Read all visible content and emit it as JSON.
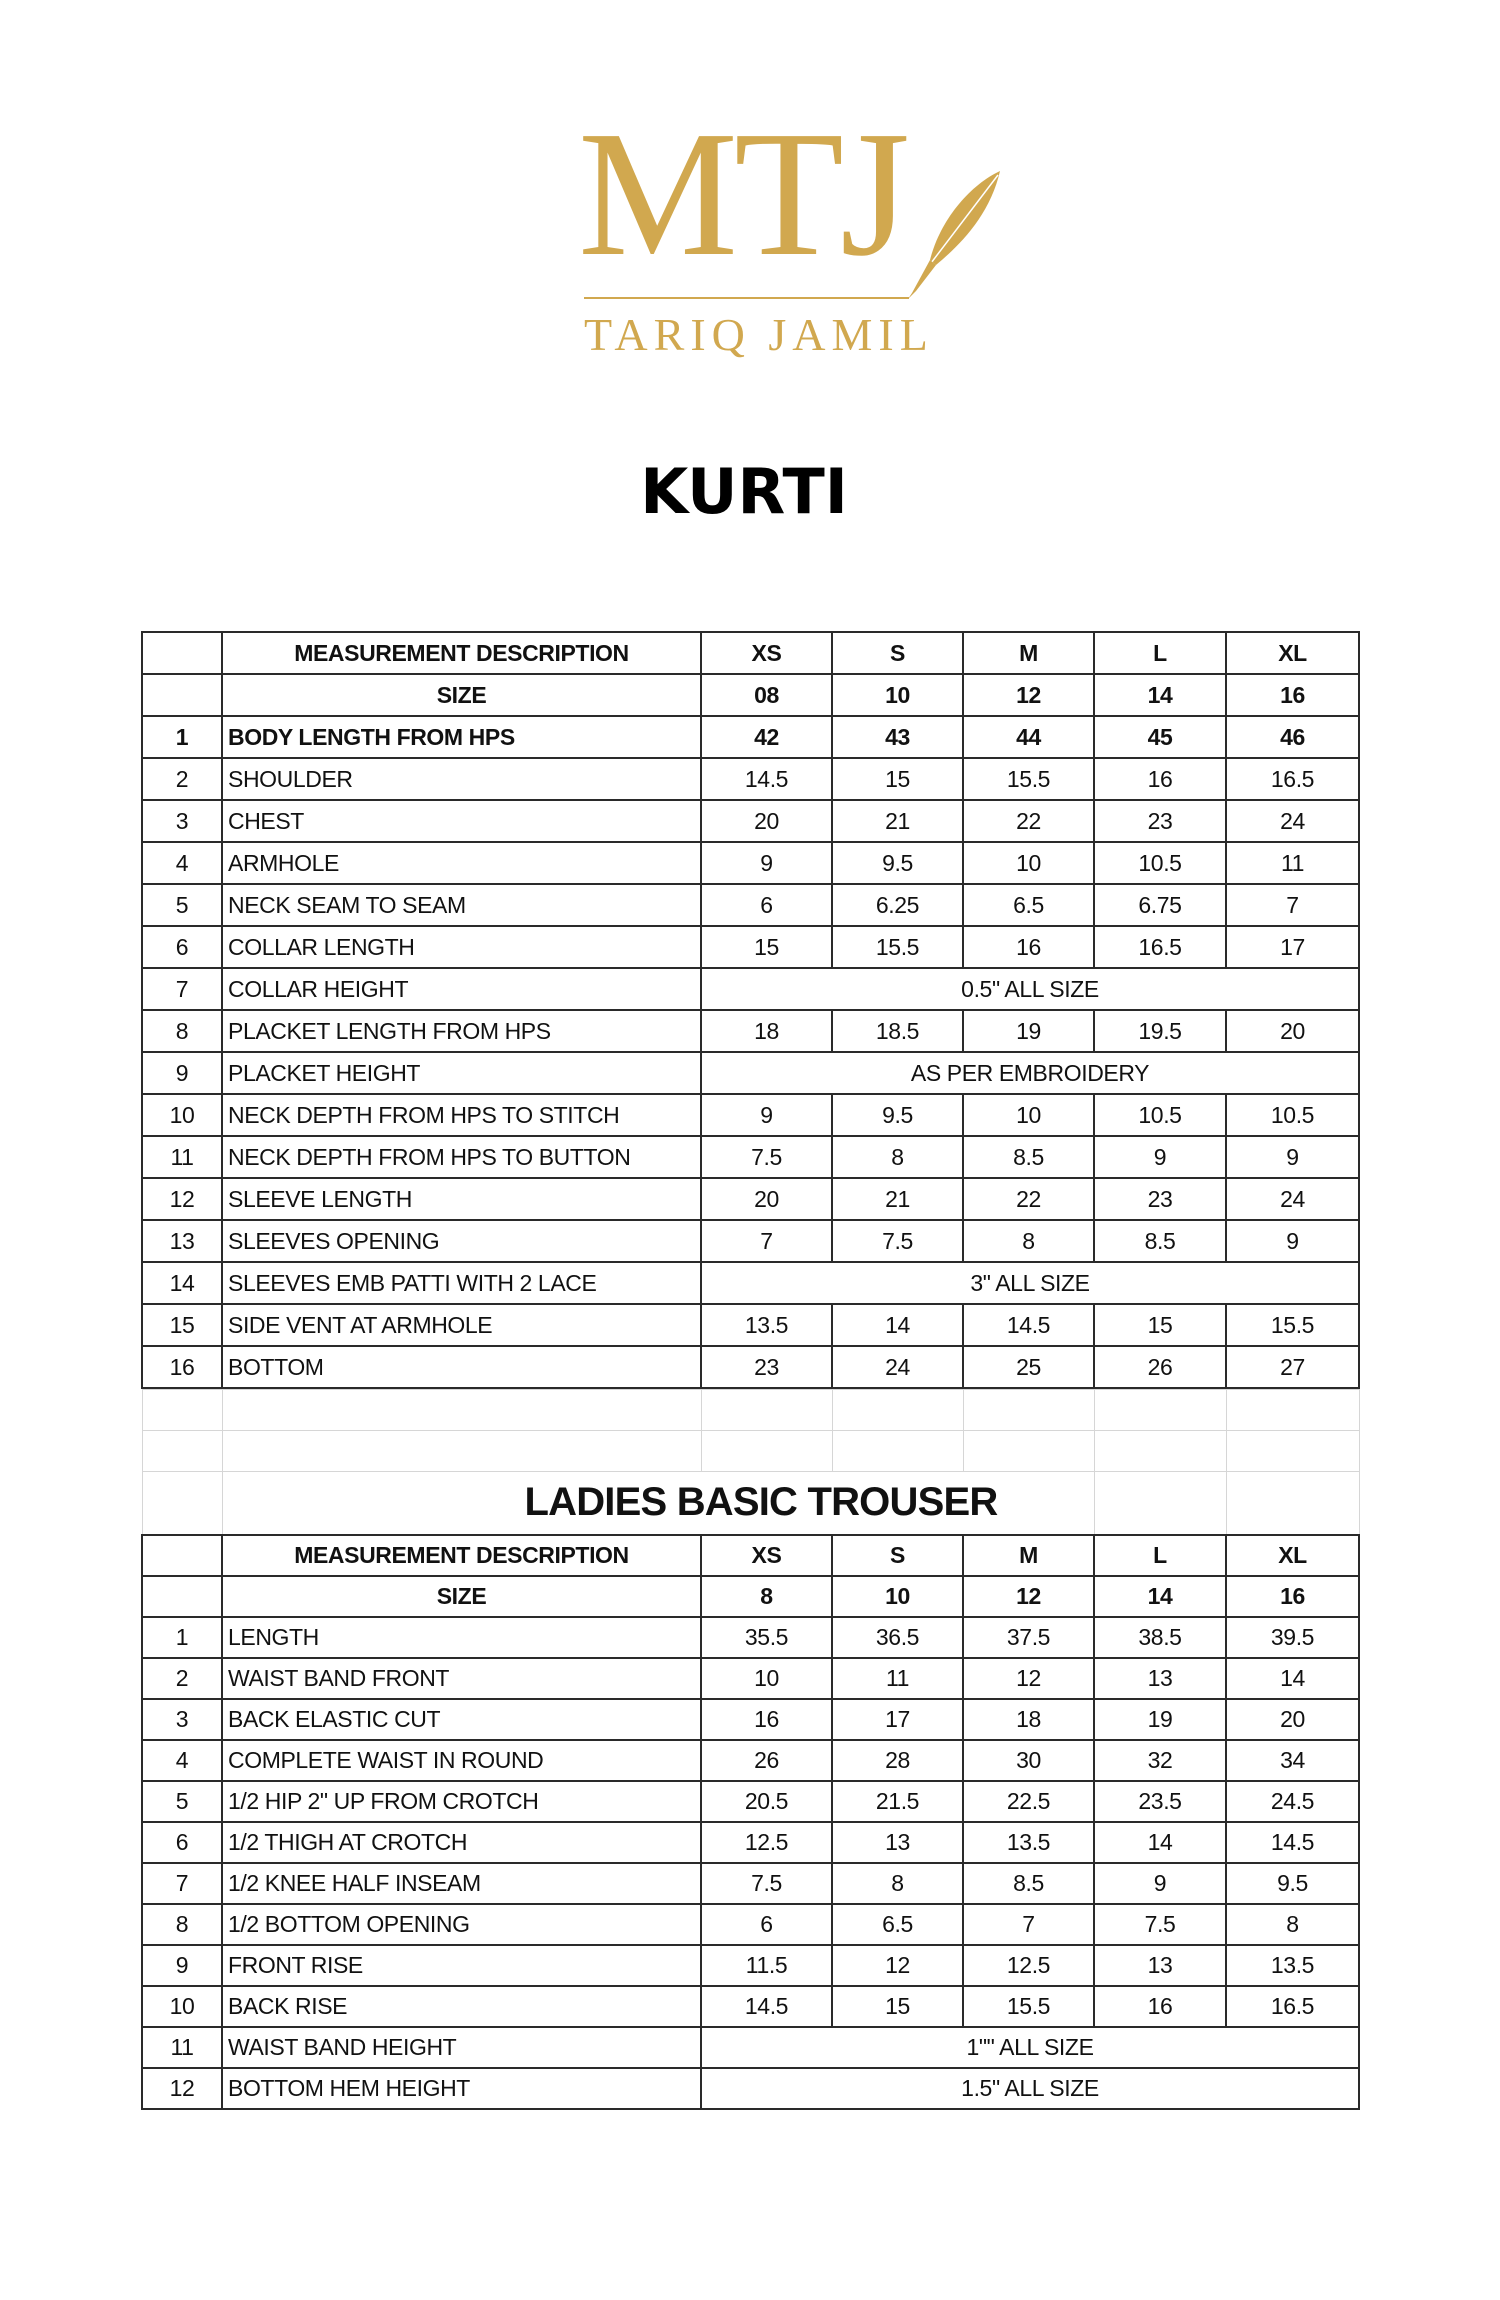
{
  "brand": {
    "logo_text": "MTJ",
    "logo_subtext": "TARIQ JAMIL",
    "color": "#d1a84f"
  },
  "kurti": {
    "title": "KURTI",
    "header": {
      "desc": "MEASUREMENT DESCRIPTION",
      "sizes": [
        "XS",
        "S",
        "M",
        "L",
        "XL"
      ]
    },
    "size_row": {
      "label": "SIZE",
      "values": [
        "08",
        "10",
        "12",
        "14",
        "16"
      ]
    },
    "rows": [
      {
        "no": "1",
        "desc": "BODY LENGTH FROM HPS",
        "values": [
          "42",
          "43",
          "44",
          "45",
          "46"
        ],
        "bold": true
      },
      {
        "no": "2",
        "desc": "SHOULDER",
        "values": [
          "14.5",
          "15",
          "15.5",
          "16",
          "16.5"
        ]
      },
      {
        "no": "3",
        "desc": "CHEST",
        "values": [
          "20",
          "21",
          "22",
          "23",
          "24"
        ]
      },
      {
        "no": "4",
        "desc": "ARMHOLE",
        "values": [
          "9",
          "9.5",
          "10",
          "10.5",
          "11"
        ]
      },
      {
        "no": "5",
        "desc": "NECK SEAM TO SEAM",
        "values": [
          "6",
          "6.25",
          "6.5",
          "6.75",
          "7"
        ]
      },
      {
        "no": "6",
        "desc": "COLLAR LENGTH",
        "values": [
          "15",
          "15.5",
          "16",
          "16.5",
          "17"
        ]
      },
      {
        "no": "7",
        "desc": "COLLAR HEIGHT",
        "all": "0.5\" ALL SIZE"
      },
      {
        "no": "8",
        "desc": "PLACKET LENGTH FROM HPS",
        "values": [
          "18",
          "18.5",
          "19",
          "19.5",
          "20"
        ]
      },
      {
        "no": "9",
        "desc": "PLACKET HEIGHT",
        "all": "AS PER EMBROIDERY"
      },
      {
        "no": "10",
        "desc": "NECK DEPTH FROM HPS TO STITCH",
        "values": [
          "9",
          "9.5",
          "10",
          "10.5",
          "10.5"
        ]
      },
      {
        "no": "11",
        "desc": "NECK DEPTH FROM HPS TO BUTTON",
        "values": [
          "7.5",
          "8",
          "8.5",
          "9",
          "9"
        ]
      },
      {
        "no": "12",
        "desc": "SLEEVE LENGTH",
        "values": [
          "20",
          "21",
          "22",
          "23",
          "24"
        ]
      },
      {
        "no": "13",
        "desc": "SLEEVES OPENING",
        "values": [
          "7",
          "7.5",
          "8",
          "8.5",
          "9"
        ]
      },
      {
        "no": "14",
        "desc": "SLEEVES EMB PATTI  WITH 2 LACE",
        "all": "3\" ALL SIZE"
      },
      {
        "no": "15",
        "desc": "SIDE VENT AT ARMHOLE",
        "values": [
          "13.5",
          "14",
          "14.5",
          "15",
          "15.5"
        ]
      },
      {
        "no": "16",
        "desc": "BOTTOM",
        "values": [
          "23",
          "24",
          "25",
          "26",
          "27"
        ]
      }
    ]
  },
  "trouser": {
    "title": "LADIES BASIC  TROUSER",
    "header": {
      "desc": "MEASUREMENT DESCRIPTION",
      "sizes": [
        "XS",
        "S",
        "M",
        "L",
        "XL"
      ]
    },
    "size_row": {
      "label": "SIZE",
      "values": [
        "8",
        "10",
        "12",
        "14",
        "16"
      ]
    },
    "rows": [
      {
        "no": "1",
        "desc": "LENGTH",
        "values": [
          "35.5",
          "36.5",
          "37.5",
          "38.5",
          "39.5"
        ]
      },
      {
        "no": "2",
        "desc": "WAIST BAND FRONT",
        "values": [
          "10",
          "11",
          "12",
          "13",
          "14"
        ]
      },
      {
        "no": "3",
        "desc": "BACK ELASTIC CUT",
        "values": [
          "16",
          "17",
          "18",
          "19",
          "20"
        ]
      },
      {
        "no": "4",
        "desc": "COMPLETE WAIST IN ROUND",
        "values": [
          "26",
          "28",
          "30",
          "32",
          "34"
        ]
      },
      {
        "no": "5",
        "desc": "1/2 HIP 2\" UP FROM CROTCH",
        "values": [
          "20.5",
          "21.5",
          "22.5",
          "23.5",
          "24.5"
        ]
      },
      {
        "no": "6",
        "desc": "1/2 THIGH AT CROTCH",
        "values": [
          "12.5",
          "13",
          "13.5",
          "14",
          "14.5"
        ]
      },
      {
        "no": "7",
        "desc": "1/2 KNEE HALF INSEAM",
        "values": [
          "7.5",
          "8",
          "8.5",
          "9",
          "9.5"
        ]
      },
      {
        "no": "8",
        "desc": "1/2 BOTTOM OPENING",
        "values": [
          "6",
          "6.5",
          "7",
          "7.5",
          "8"
        ]
      },
      {
        "no": "9",
        "desc": "FRONT RISE",
        "values": [
          "11.5",
          "12",
          "12.5",
          "13",
          "13.5"
        ]
      },
      {
        "no": "10",
        "desc": "BACK RISE",
        "values": [
          "14.5",
          "15",
          "15.5",
          "16",
          "16.5"
        ]
      },
      {
        "no": "11",
        "desc": "WAIST BAND HEIGHT",
        "all": "1\"\" ALL SIZE"
      },
      {
        "no": "12",
        "desc": "BOTTOM HEM HEIGHT",
        "all": "1.5\" ALL SIZE"
      }
    ]
  }
}
